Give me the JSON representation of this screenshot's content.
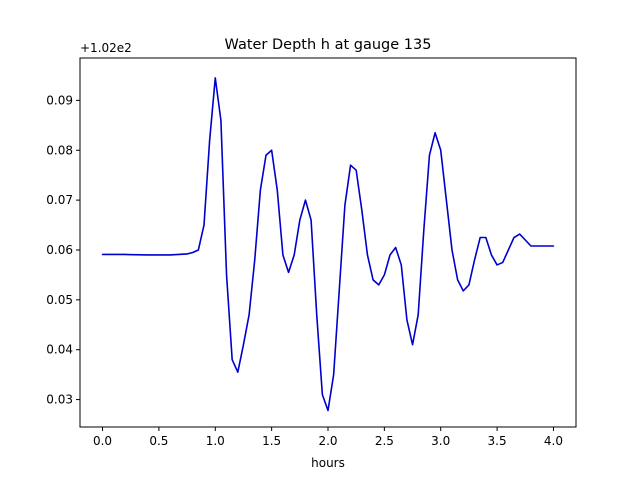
{
  "chart_data": {
    "type": "line",
    "title": "Water Depth h at gauge 135",
    "xlabel": "hours",
    "ylabel": "",
    "offset_text": "+1.02e2",
    "xlim": [
      -0.2,
      4.2
    ],
    "ylim": [
      0.0245,
      0.0985
    ],
    "xticks": [
      0.0,
      0.5,
      1.0,
      1.5,
      2.0,
      2.5,
      3.0,
      3.5,
      4.0
    ],
    "xtick_labels": [
      "0.0",
      "0.5",
      "1.0",
      "1.5",
      "2.0",
      "2.5",
      "3.0",
      "3.5",
      "4.0"
    ],
    "yticks": [
      0.03,
      0.04,
      0.05,
      0.06,
      0.07,
      0.08,
      0.09
    ],
    "ytick_labels": [
      "0.03",
      "0.04",
      "0.05",
      "0.06",
      "0.07",
      "0.08",
      "0.09"
    ],
    "grid": false,
    "series": [
      {
        "name": "",
        "color": "#0000cc",
        "x": [
          0.0,
          0.2,
          0.4,
          0.6,
          0.75,
          0.8,
          0.85,
          0.9,
          0.95,
          1.0,
          1.05,
          1.1,
          1.15,
          1.2,
          1.25,
          1.3,
          1.35,
          1.4,
          1.45,
          1.5,
          1.55,
          1.6,
          1.65,
          1.7,
          1.75,
          1.8,
          1.85,
          1.9,
          1.95,
          2.0,
          2.05,
          2.1,
          2.15,
          2.2,
          2.25,
          2.3,
          2.35,
          2.4,
          2.45,
          2.5,
          2.55,
          2.6,
          2.65,
          2.7,
          2.75,
          2.8,
          2.85,
          2.9,
          2.95,
          3.0,
          3.05,
          3.1,
          3.15,
          3.2,
          3.25,
          3.3,
          3.35,
          3.4,
          3.45,
          3.5,
          3.55,
          3.6,
          3.65,
          3.7,
          3.75,
          3.8,
          3.85,
          3.9,
          3.95,
          4.0
        ],
        "y": [
          0.0591,
          0.0591,
          0.059,
          0.059,
          0.0592,
          0.0595,
          0.06,
          0.065,
          0.082,
          0.0945,
          0.086,
          0.055,
          0.038,
          0.0355,
          0.041,
          0.047,
          0.058,
          0.072,
          0.079,
          0.08,
          0.072,
          0.059,
          0.0555,
          0.059,
          0.066,
          0.07,
          0.066,
          0.047,
          0.031,
          0.0278,
          0.035,
          0.052,
          0.069,
          0.077,
          0.076,
          0.068,
          0.059,
          0.054,
          0.053,
          0.055,
          0.059,
          0.0605,
          0.057,
          0.046,
          0.041,
          0.047,
          0.064,
          0.079,
          0.0835,
          0.08,
          0.07,
          0.06,
          0.054,
          0.0518,
          0.053,
          0.058,
          0.0625,
          0.0625,
          0.059,
          0.057,
          0.0575,
          0.06,
          0.0625,
          0.0632,
          0.062,
          0.0608,
          0.0608,
          0.0608,
          0.0608,
          0.0608
        ]
      }
    ]
  }
}
